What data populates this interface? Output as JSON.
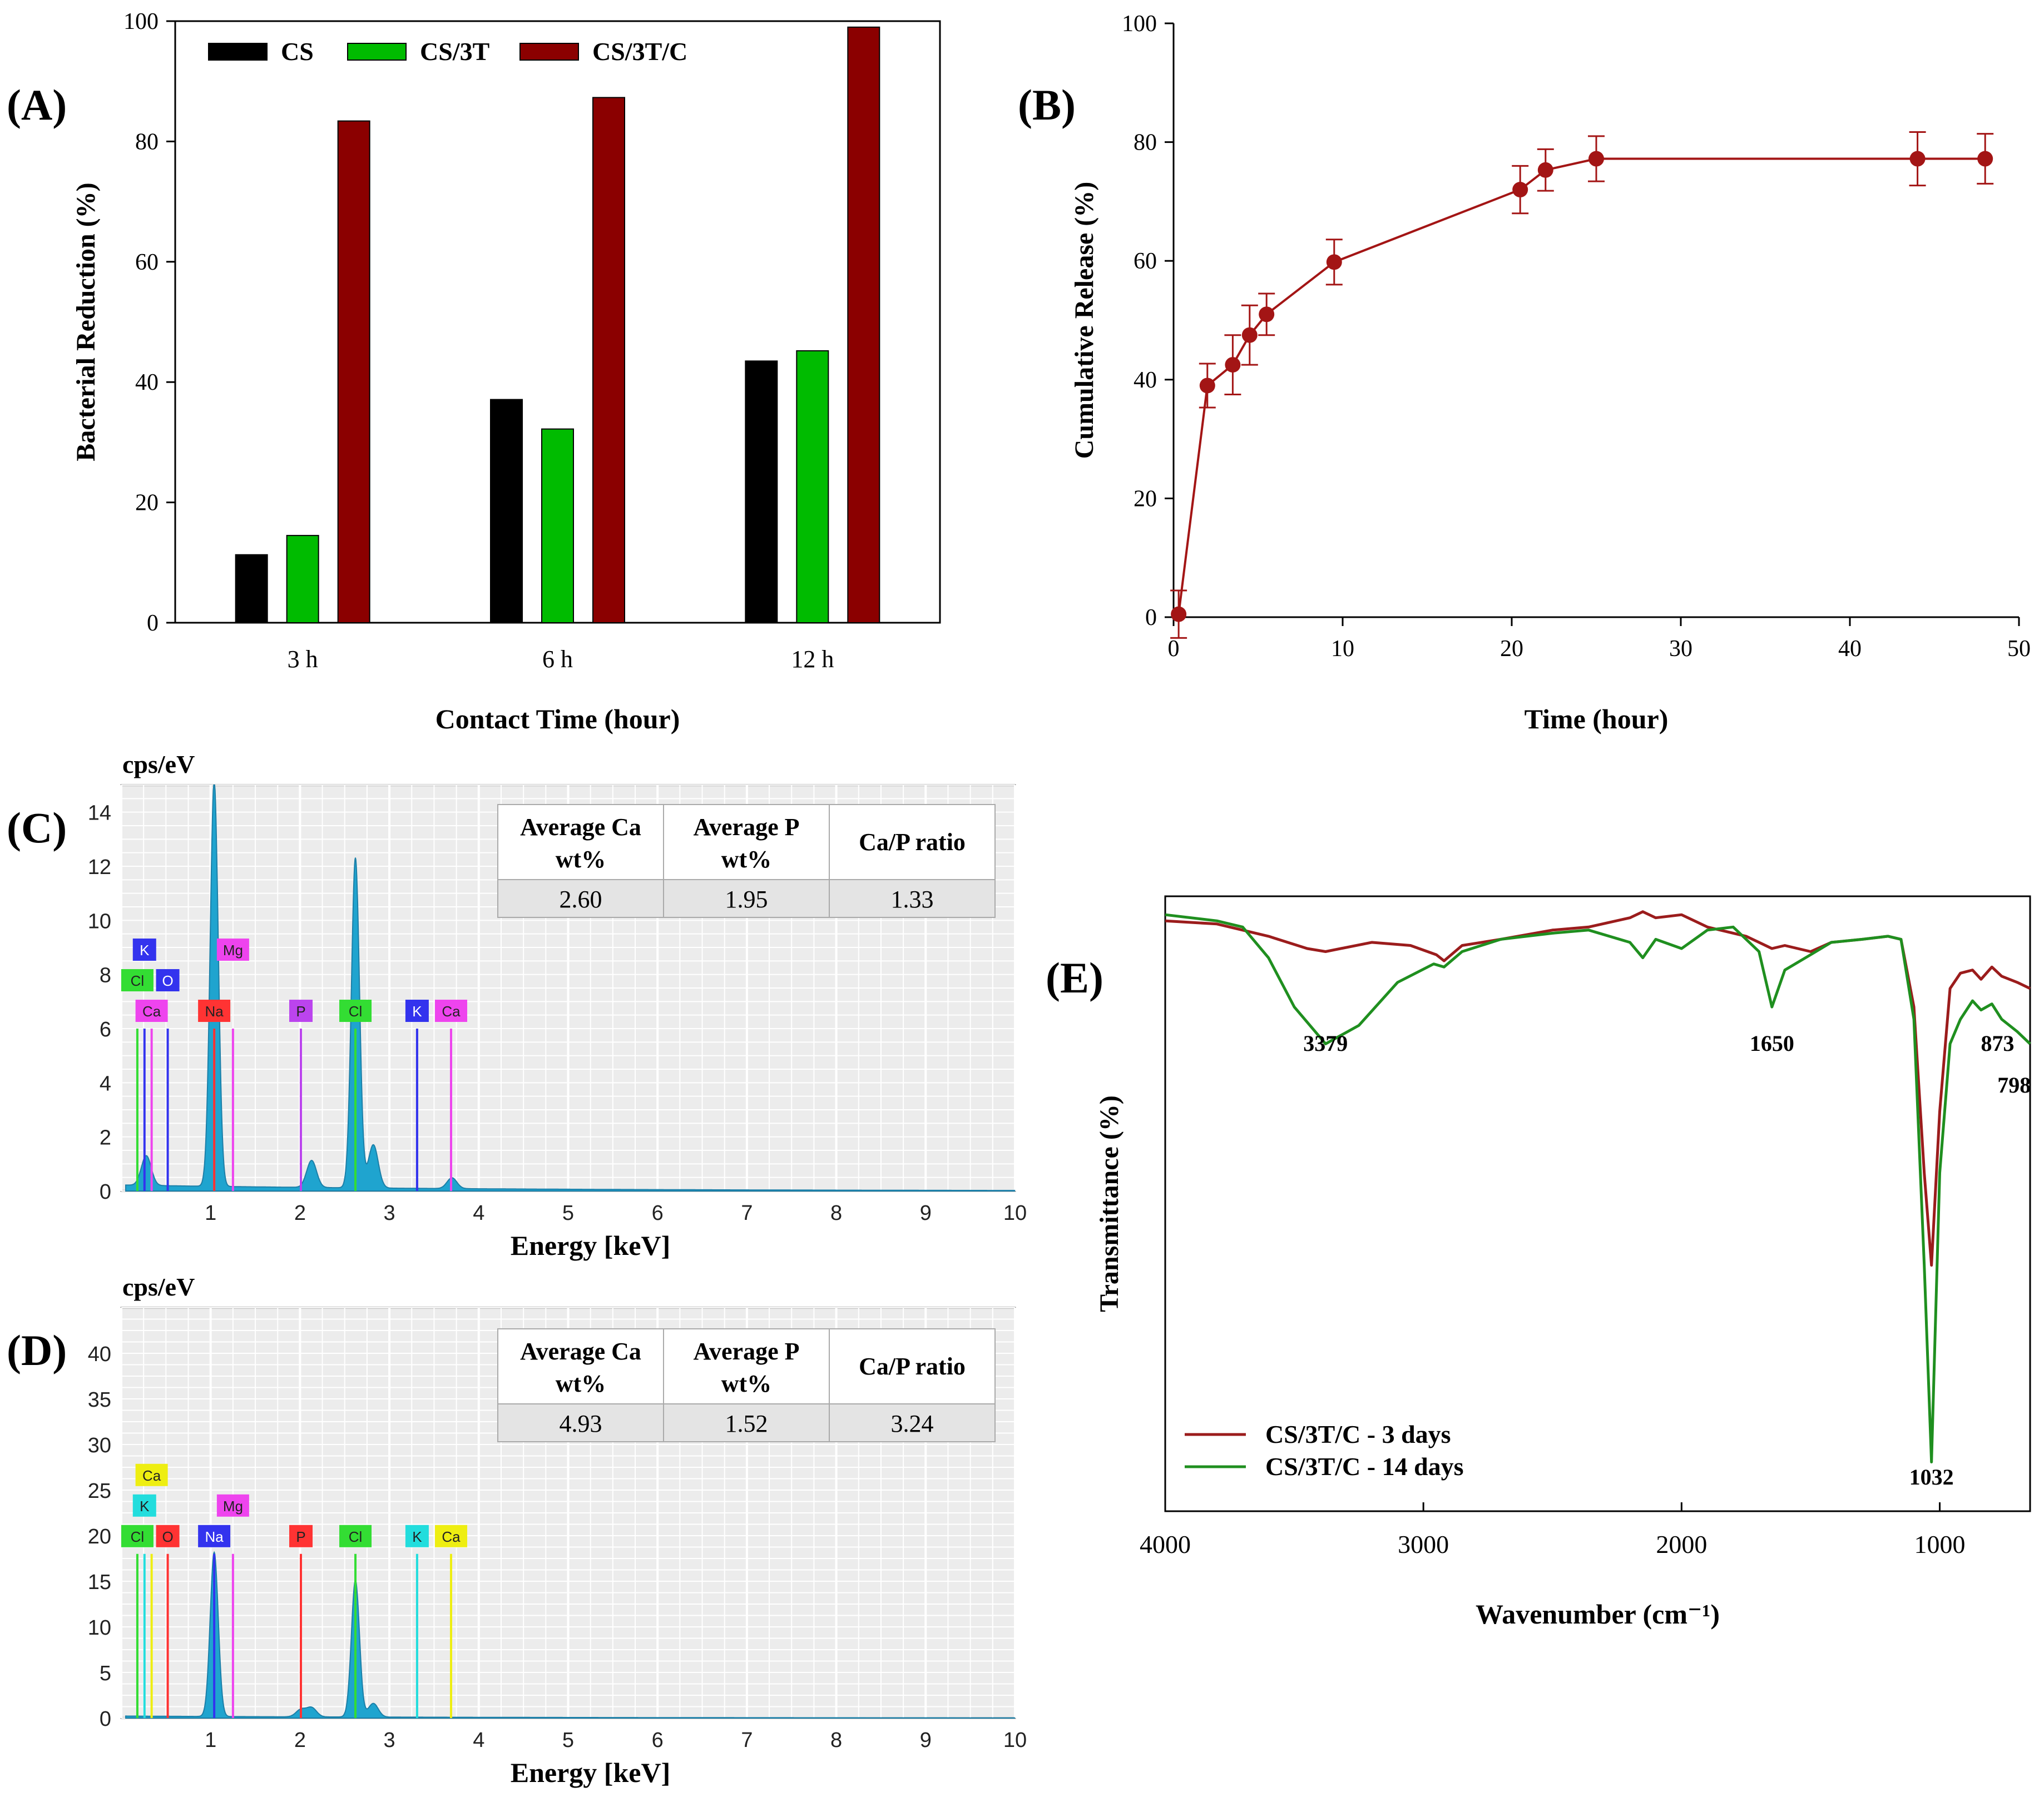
{
  "panel_labels": {
    "a": "(A)",
    "b": "(B)",
    "c": "(C)",
    "d": "(D)",
    "e": "(E)"
  },
  "chart_data": [
    {
      "id": "A",
      "type": "bar",
      "title": "",
      "xlabel": "Contact Time (hour)",
      "ylabel": "Bacterial Reduction (%)",
      "categories": [
        "3 h",
        "6 h",
        "12 h"
      ],
      "ylim": [
        0,
        100
      ],
      "yticks": [
        0,
        20,
        40,
        60,
        80,
        100
      ],
      "legend_position": "top-left",
      "series": [
        {
          "name": "CS",
          "color": "#000000",
          "values": [
            11.3,
            37.1,
            43.5
          ]
        },
        {
          "name": "CS/3T",
          "color": "#00bb00",
          "values": [
            14.5,
            32.2,
            45.2
          ]
        },
        {
          "name": "CS/3T/C",
          "color": "#8b0000",
          "values": [
            83.4,
            87.3,
            99.0
          ]
        }
      ]
    },
    {
      "id": "B",
      "type": "line",
      "title": "",
      "xlabel": "Time (hour)",
      "ylabel": "Cumulative Release (%)",
      "xlim": [
        0,
        50
      ],
      "ylim": [
        0,
        100
      ],
      "xticks": [
        0,
        10,
        20,
        30,
        40,
        50
      ],
      "yticks": [
        0,
        20,
        40,
        60,
        80,
        100
      ],
      "color": "#a31515",
      "series": [
        {
          "name": "release",
          "x": [
            0.3,
            2,
            3.5,
            4.5,
            5.5,
            9.5,
            20.5,
            22,
            25,
            44,
            48
          ],
          "y": [
            0.5,
            39,
            42.5,
            47.5,
            51,
            59.8,
            72,
            75.3,
            77.2,
            77.2,
            77.2
          ],
          "err": [
            4,
            3.7,
            5,
            5,
            3.5,
            3.8,
            4,
            3.5,
            3.8,
            4.5,
            4.2
          ]
        }
      ]
    },
    {
      "id": "C",
      "type": "area",
      "title": "",
      "units_label": "cps/eV",
      "xlabel": "Energy [keV]",
      "xlim": [
        0,
        10
      ],
      "ylim": [
        0,
        15
      ],
      "xticks": [
        1,
        2,
        3,
        4,
        5,
        6,
        7,
        8,
        9,
        10
      ],
      "yticks": [
        0,
        2,
        4,
        6,
        8,
        10,
        12,
        14
      ],
      "peaks": [
        {
          "energy": 1.04,
          "height": 15.0
        },
        {
          "energy": 2.62,
          "height": 12.2
        },
        {
          "energy": 2.13,
          "height": 1.0
        },
        {
          "energy": 2.82,
          "height": 1.6
        },
        {
          "energy": 3.7,
          "height": 0.4
        },
        {
          "energy": 0.28,
          "height": 1.1
        }
      ],
      "element_markers": [
        {
          "label": "Cl",
          "energy": 0.18,
          "height": 6.0,
          "tier": 2,
          "color": "#33dd33"
        },
        {
          "label": "K",
          "energy": 0.26,
          "height": 6.0,
          "tier": 1,
          "color": "#3333ee"
        },
        {
          "label": "Ca",
          "energy": 0.34,
          "height": 6.0,
          "tier": 3,
          "color": "#ee44ee"
        },
        {
          "label": "O",
          "energy": 0.52,
          "height": 6.0,
          "tier": 2,
          "color": "#3333ee"
        },
        {
          "label": "Na",
          "energy": 1.04,
          "height": 6.0,
          "tier": 3,
          "color": "#ff3333"
        },
        {
          "label": "Mg",
          "energy": 1.25,
          "height": 6.0,
          "tier": 1,
          "color": "#ee44ee"
        },
        {
          "label": "P",
          "energy": 2.01,
          "height": 6.0,
          "tier": 3,
          "color": "#bb44ee"
        },
        {
          "label": "Cl",
          "energy": 2.62,
          "height": 6.0,
          "tier": 3,
          "color": "#33dd33"
        },
        {
          "label": "K",
          "energy": 3.31,
          "height": 6.0,
          "tier": 3,
          "color": "#3333ee"
        },
        {
          "label": "Ca",
          "energy": 3.69,
          "height": 6.0,
          "tier": 3,
          "color": "#ee44ee"
        }
      ],
      "table": {
        "headers": [
          "Average Ca wt%",
          "Average P wt%",
          "Ca/P ratio"
        ],
        "values": [
          "2.60",
          "1.95",
          "1.33"
        ]
      }
    },
    {
      "id": "D",
      "type": "area",
      "title": "",
      "units_label": "cps/eV",
      "xlabel": "Energy [keV]",
      "xlim": [
        0,
        10
      ],
      "ylim": [
        0,
        45
      ],
      "xticks": [
        1,
        2,
        3,
        4,
        5,
        6,
        7,
        8,
        9,
        10
      ],
      "yticks": [
        0,
        5,
        10,
        15,
        20,
        25,
        30,
        35,
        40
      ],
      "peaks": [
        {
          "energy": 1.04,
          "height": 18.0
        },
        {
          "energy": 2.62,
          "height": 15.0
        },
        {
          "energy": 2.13,
          "height": 1.0
        },
        {
          "energy": 2.82,
          "height": 1.5
        },
        {
          "energy": 2.01,
          "height": 0.8
        }
      ],
      "element_markers": [
        {
          "label": "Cl",
          "energy": 0.18,
          "height": 18.0,
          "tier": 3,
          "color": "#33dd33"
        },
        {
          "label": "K",
          "energy": 0.26,
          "height": 18.0,
          "tier": 2,
          "color": "#22dddd"
        },
        {
          "label": "Ca",
          "energy": 0.34,
          "height": 18.0,
          "tier": 1,
          "color": "#eeee11"
        },
        {
          "label": "O",
          "energy": 0.52,
          "height": 18.0,
          "tier": 3,
          "color": "#ff3333"
        },
        {
          "label": "Na",
          "energy": 1.04,
          "height": 18.0,
          "tier": 3,
          "color": "#3333ee"
        },
        {
          "label": "Mg",
          "energy": 1.25,
          "height": 18.0,
          "tier": 2,
          "color": "#ee44ee"
        },
        {
          "label": "P",
          "energy": 2.01,
          "height": 18.0,
          "tier": 3,
          "color": "#ff3333"
        },
        {
          "label": "Cl",
          "energy": 2.62,
          "height": 18.0,
          "tier": 3,
          "color": "#33dd33"
        },
        {
          "label": "K",
          "energy": 3.31,
          "height": 18.0,
          "tier": 3,
          "color": "#22dddd"
        },
        {
          "label": "Ca",
          "energy": 3.69,
          "height": 18.0,
          "tier": 3,
          "color": "#eeee11"
        }
      ],
      "table": {
        "headers": [
          "Average Ca wt%",
          "Average P wt%",
          "Ca/P ratio"
        ],
        "values": [
          "4.93",
          "1.52",
          "3.24"
        ]
      }
    },
    {
      "id": "E",
      "type": "line",
      "title": "",
      "xlabel": "Wavenumber (cm⁻¹)",
      "ylabel": "Transmittance (%)",
      "xlim": [
        4000,
        650
      ],
      "ylim": [
        0,
        100
      ],
      "xticks": [
        4000,
        3000,
        2000,
        1000
      ],
      "legend_position": "bottom-left",
      "peak_labels": [
        {
          "text": "3379",
          "x": 3379
        },
        {
          "text": "1650",
          "x": 1650
        },
        {
          "text": "873",
          "x": 873
        },
        {
          "text": "798",
          "x": 798
        },
        {
          "text": "1032",
          "x": 1032
        }
      ],
      "series": [
        {
          "name": "CS/3T/C - 3 days",
          "color": "#9b1c1c",
          "x": [
            4000,
            3800,
            3600,
            3450,
            3379,
            3200,
            3050,
            2950,
            2920,
            2850,
            2700,
            2500,
            2360,
            2200,
            2150,
            2100,
            2000,
            1900,
            1750,
            1700,
            1650,
            1600,
            1500,
            1420,
            1300,
            1200,
            1150,
            1100,
            1060,
            1032,
            1000,
            960,
            920,
            873,
            840,
            798,
            760,
            700,
            650
          ],
          "y": [
            96,
            95.5,
            93.5,
            91.5,
            91,
            92.5,
            92,
            90.5,
            89.5,
            92,
            93,
            94.5,
            95,
            96.5,
            97.5,
            96.5,
            97,
            95,
            93.5,
            92.5,
            91.5,
            92,
            91,
            92.5,
            93,
            93.5,
            93,
            82,
            55,
            40,
            65,
            85,
            87.5,
            88,
            86.5,
            88.5,
            87,
            86,
            85
          ]
        },
        {
          "name": "CS/3T/C - 14 days",
          "color": "#1f8f1f",
          "x": [
            4000,
            3800,
            3700,
            3600,
            3500,
            3379,
            3250,
            3100,
            2960,
            2920,
            2850,
            2700,
            2500,
            2360,
            2200,
            2150,
            2100,
            2000,
            1900,
            1800,
            1700,
            1650,
            1600,
            1500,
            1420,
            1300,
            1200,
            1150,
            1100,
            1060,
            1032,
            1000,
            960,
            920,
            873,
            840,
            798,
            760,
            700,
            650
          ],
          "y": [
            97,
            96,
            95,
            90,
            82,
            76,
            79,
            86,
            89,
            88.5,
            91,
            93,
            94,
            94.5,
            92.5,
            90,
            93,
            91.5,
            94.5,
            95,
            91,
            82,
            88,
            90.5,
            92.5,
            93,
            93.5,
            93,
            80,
            40,
            8,
            55,
            76,
            80,
            83,
            81.5,
            82.5,
            80,
            78,
            76
          ]
        }
      ]
    }
  ]
}
